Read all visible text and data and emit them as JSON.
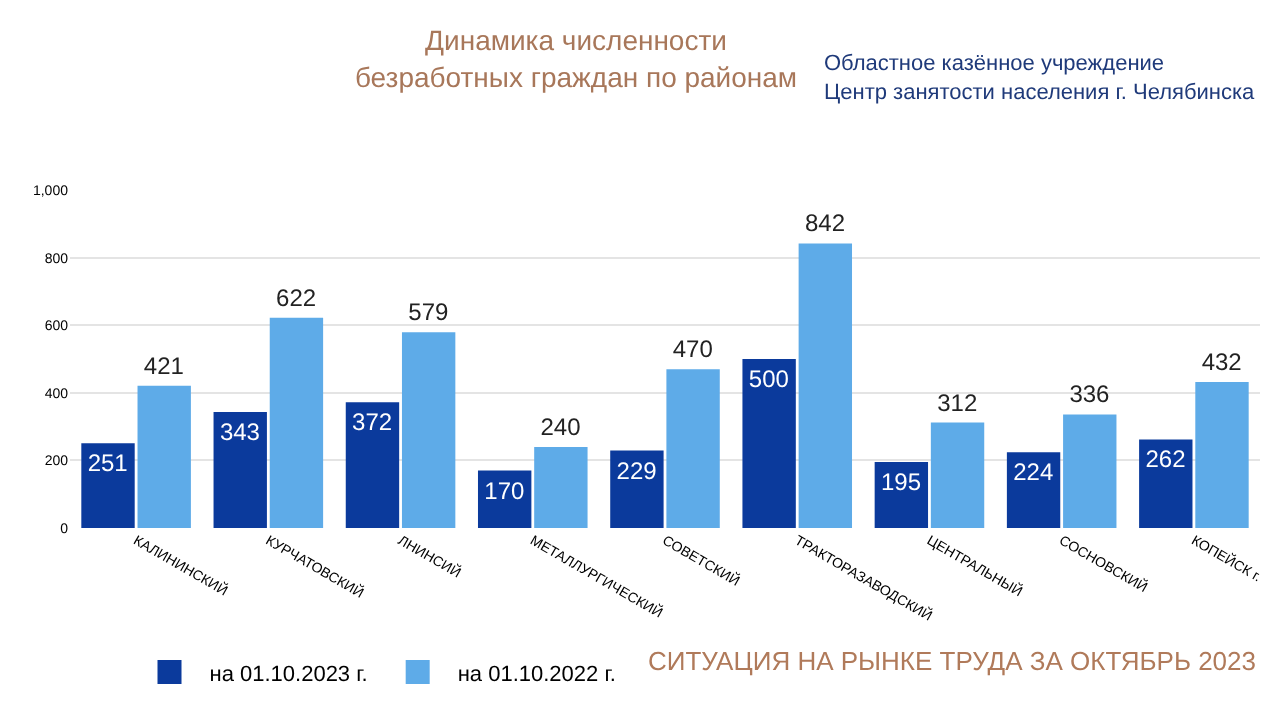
{
  "chart_data": {
    "type": "bar",
    "title": "Динамика численности\nбезработных граждан по районам",
    "annotations": [
      "Областное казённое учреждение\nЦентр занятости населения г. Челябинска",
      "СИТУАЦИЯ НА РЫНКЕ ТРУДА ЗА ОКТЯБРЬ 2023"
    ],
    "categories": [
      "КАЛИНИНСКИЙ",
      "КУРЧАТОВСКИЙ",
      "ЛНИНСИЙ",
      "МЕТАЛЛУРГИЧЕСКИЙ",
      "СОВЕТСКИЙ",
      "ТРАКТОРАЗАВОДСКИЙ",
      "ЦЕНТРАЛЬНЫЙ",
      "СОСНОВСКИЙ",
      "КОПЕЙСК г."
    ],
    "series": [
      {
        "name": "на 01.10.2023 г.",
        "color": "#0b3a9c",
        "values": [
          251,
          343,
          372,
          170,
          229,
          500,
          195,
          224,
          262
        ]
      },
      {
        "name": "на 01.10.2022 г.",
        "color": "#5eabe8",
        "values": [
          421,
          622,
          579,
          240,
          470,
          842,
          312,
          336,
          432
        ]
      }
    ],
    "ylim": [
      0,
      1000
    ],
    "yticks": [
      0,
      200,
      400,
      600,
      800,
      {
        "value": 1000,
        "label": "1,000"
      }
    ],
    "grid": "y",
    "legend": "bottom left",
    "data_labels": true
  }
}
